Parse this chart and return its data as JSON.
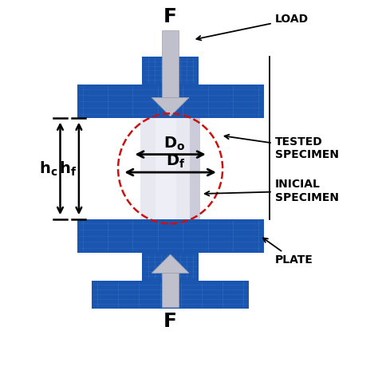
{
  "bg_color": "#ffffff",
  "blue_color": "#1a55b0",
  "specimen_color_light": "#e8e8f0",
  "specimen_color_mid": "#c8c8d8",
  "arrow_color": "#c0c0cc",
  "arrow_edge": "#a0a0ac",
  "dashed_color": "#cc1111",
  "black": "#000000",
  "label_F": "F",
  "label_load": "LOAD",
  "label_tested": "TESTED\nSPECIMEN",
  "label_inicial": "INICIAL\nSPECIMEN",
  "label_plate": "PLATE",
  "label_Do": "D_o",
  "label_Df": "D_f",
  "label_hc": "h_c",
  "label_hf": "h_f"
}
